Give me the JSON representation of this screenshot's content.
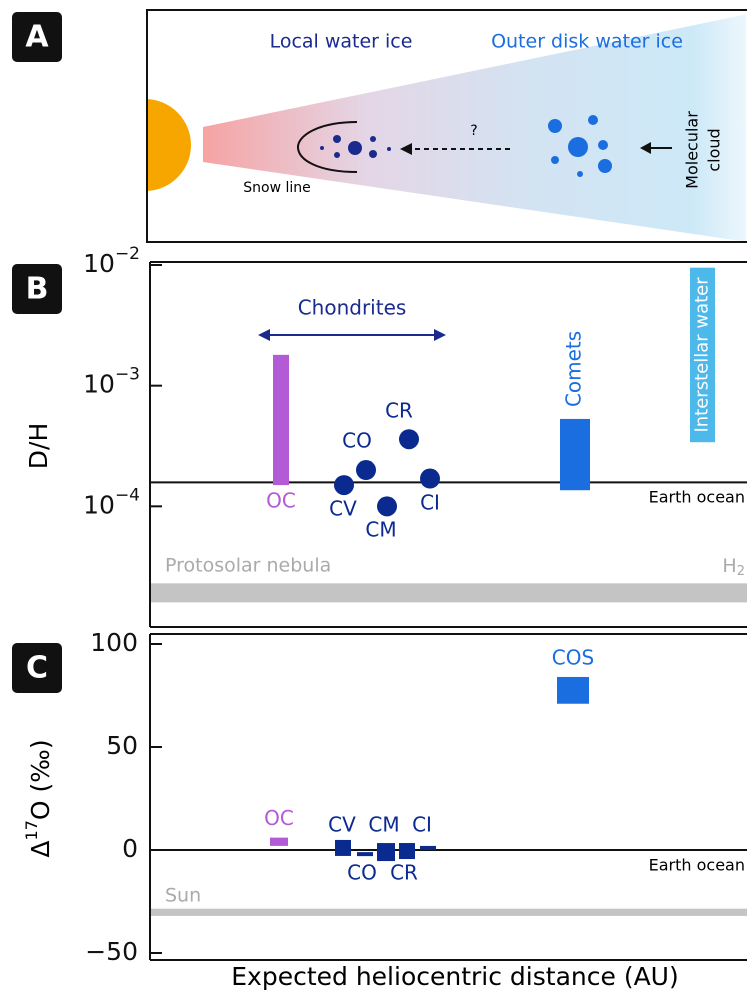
{
  "panel_a": {
    "label": "A",
    "local": "Local water ice",
    "outer": "Outer disk water ice",
    "cloud": [
      "Molecular",
      "cloud"
    ],
    "snow_line": "Snow line",
    "question": "?"
  },
  "chart_data": [
    {
      "type": "range",
      "panel_label": "B",
      "ylabel": "D/H",
      "log": true,
      "ylim": [
        1e-05,
        0.01
      ],
      "yticks": [
        {
          "value": 0.0001,
          "label": "10",
          "exponent": "−4"
        },
        {
          "value": 0.001,
          "label": "10",
          "exponent": "−3"
        },
        {
          "value": 0.01,
          "label": "10",
          "exponent": "−2"
        }
      ],
      "bars": [
        {
          "name": "OC",
          "color": "#b35ad6",
          "range": [
            0.00015,
            0.0018
          ]
        },
        {
          "name": "Comets",
          "color": "#1a6ee0",
          "range": [
            0.000136,
            0.00053
          ]
        },
        {
          "name": "Interstellar water",
          "color": "#4db8ea",
          "range": [
            0.00034,
            0.0095
          ]
        }
      ],
      "group_label": "Chondrites",
      "points": {
        "names": [
          "CO",
          "CV",
          "CM",
          "CR",
          "CI"
        ],
        "values": [
          0.0002,
          0.00015,
          0.0001,
          0.00036,
          0.00017
        ],
        "color": "#0b2a8f"
      },
      "reference_line": {
        "name": "Earth ocean",
        "value": 0.000158
      },
      "band": {
        "name": "Protosolar nebula",
        "species": "H",
        "subscript": "2",
        "range": [
          1.6e-05,
          2.3e-05
        ],
        "color": "#c4c4c4"
      }
    },
    {
      "type": "range",
      "panel_label": "C",
      "ylabel": [
        "Δ",
        "17",
        "O (‰)"
      ],
      "log": false,
      "ylim": [
        -50,
        100
      ],
      "yticks": [
        {
          "value": -50,
          "label": "−50"
        },
        0,
        50,
        100
      ],
      "bars": [
        {
          "name": "OC",
          "color": "#b35ad6",
          "range": [
            2,
            6
          ]
        },
        {
          "name": "COS",
          "color": "#1a6ee0",
          "range": [
            71,
            84
          ]
        }
      ],
      "points": {
        "names": [
          "CV",
          "CO",
          "CM",
          "CR",
          "CI"
        ],
        "values": [
          1,
          -2,
          -1,
          -0.5,
          1
        ],
        "color": "#0b2a8f"
      },
      "reference_line": {
        "name": "Earth ocean",
        "value": 0
      },
      "band": {
        "name": "Sun",
        "range": [
          -32,
          -28.5
        ],
        "color": "#c4c4c4"
      },
      "xlabel": "Expected heliocentric distance (AU)"
    }
  ]
}
